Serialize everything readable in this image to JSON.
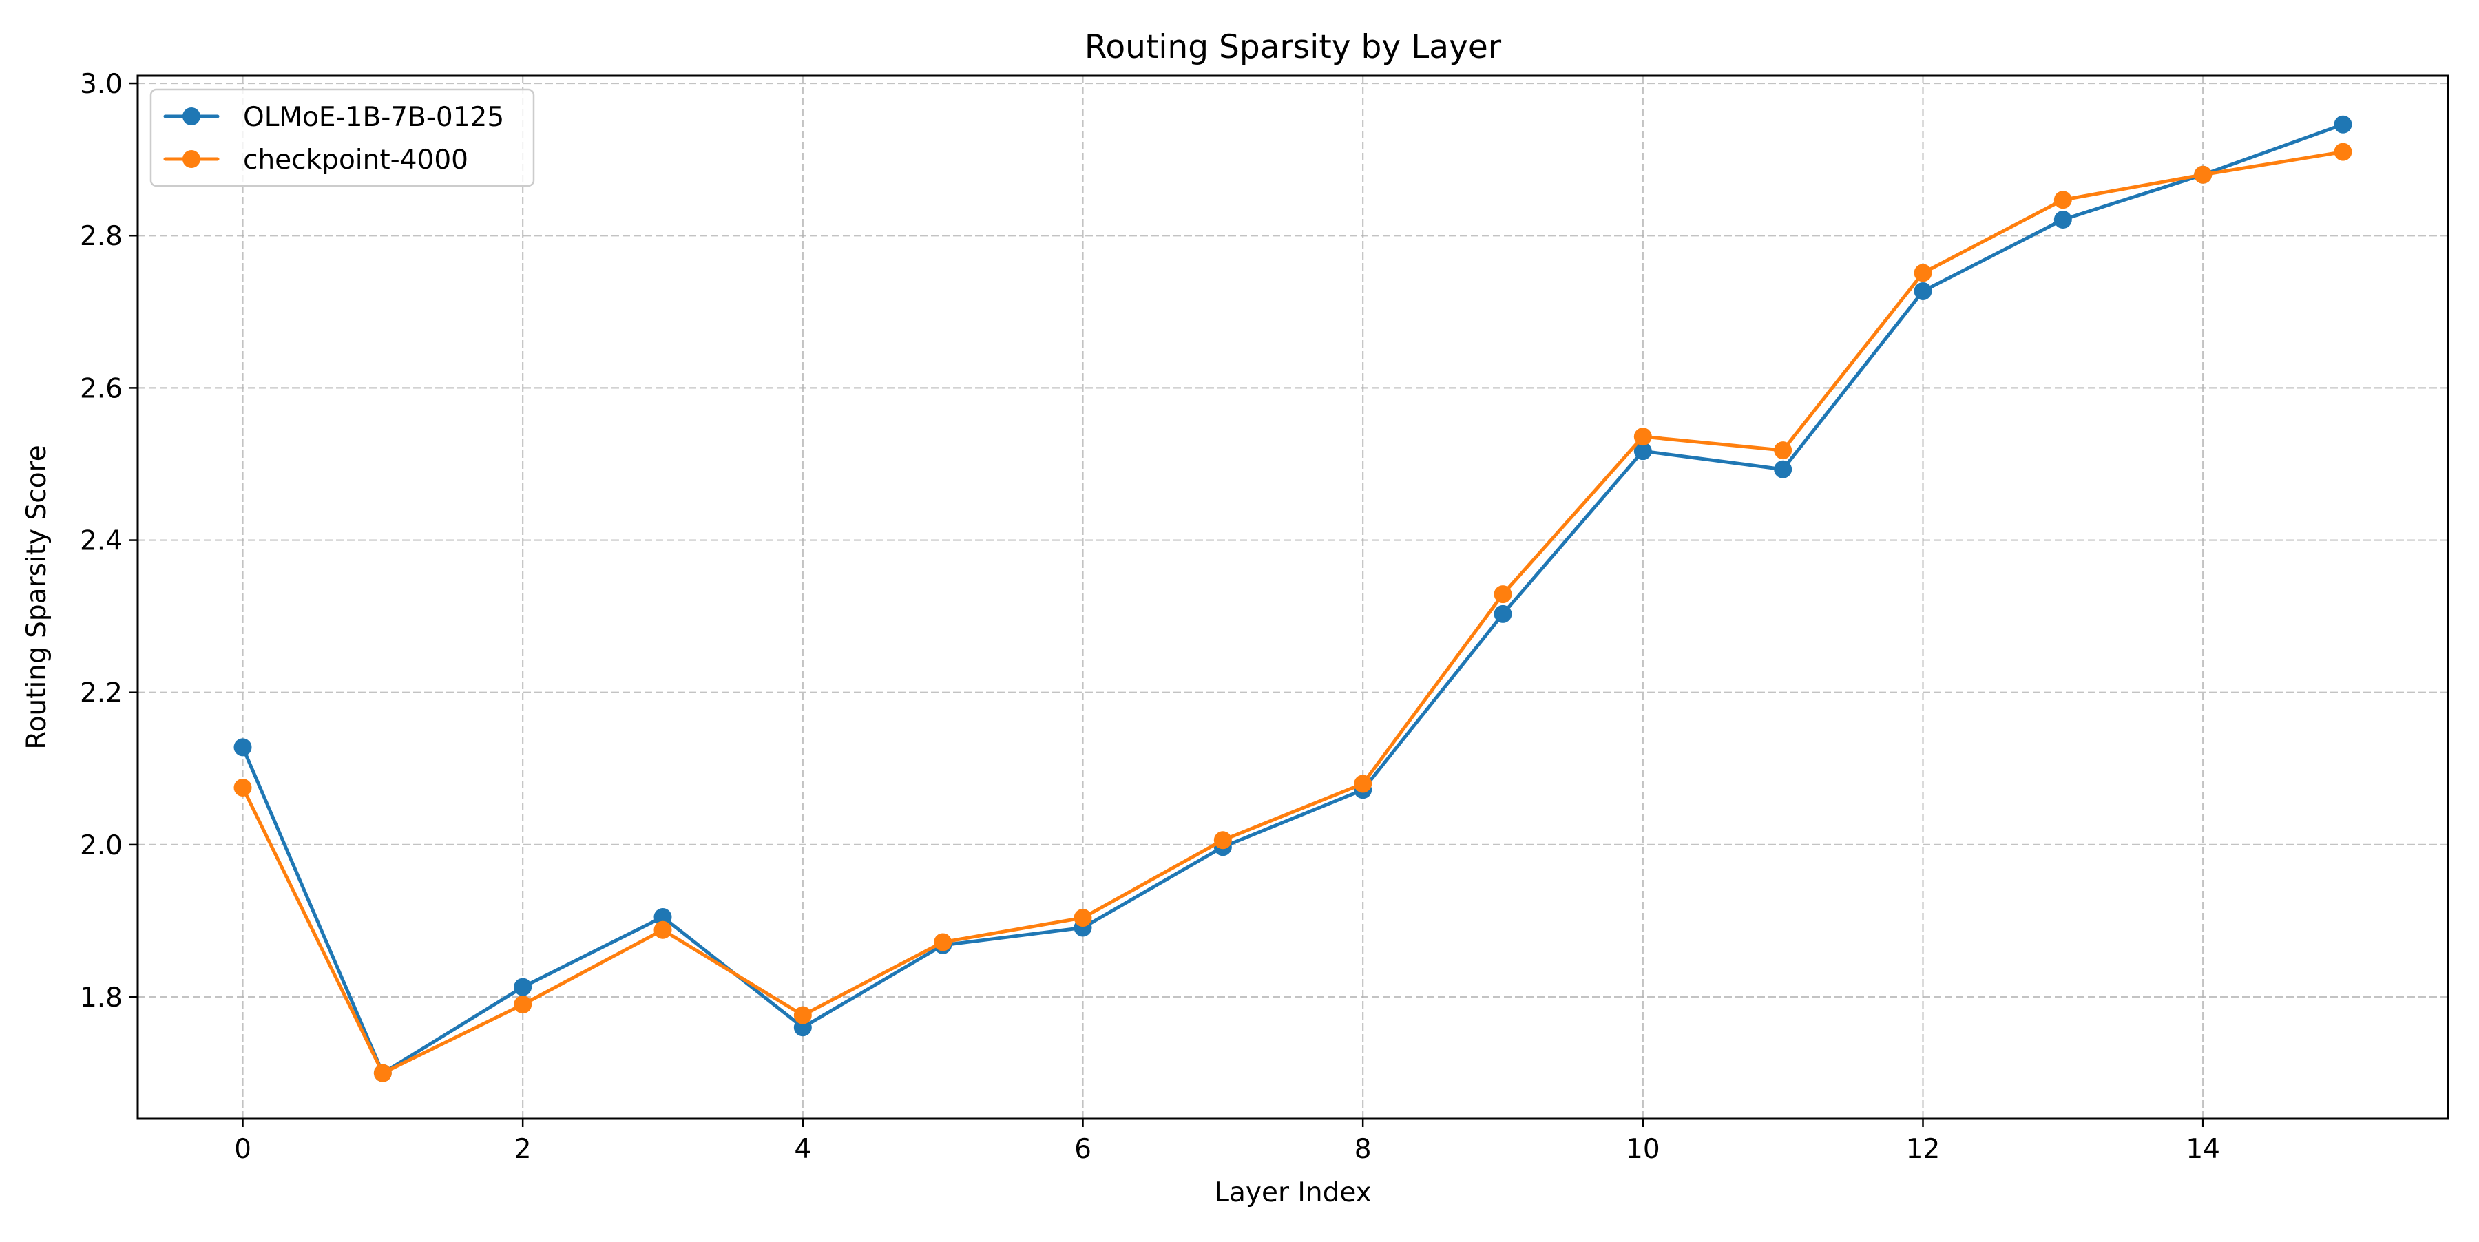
{
  "chart_data": {
    "type": "line",
    "title": "Routing Sparsity by Layer",
    "xlabel": "Layer Index",
    "ylabel": "Routing Sparsity Score",
    "x": [
      0,
      1,
      2,
      3,
      4,
      5,
      6,
      7,
      8,
      9,
      10,
      11,
      12,
      13,
      14,
      15
    ],
    "xlim": [
      -0.75,
      15.75
    ],
    "ylim": [
      1.64,
      3.01
    ],
    "xticks": [
      0,
      2,
      4,
      6,
      8,
      10,
      12,
      14
    ],
    "yticks": [
      1.8,
      2.0,
      2.2,
      2.4,
      2.6,
      2.8,
      3.0
    ],
    "xtick_labels": [
      "0",
      "2",
      "4",
      "6",
      "8",
      "10",
      "12",
      "14"
    ],
    "ytick_labels": [
      "1.8",
      "2.0",
      "2.2",
      "2.4",
      "2.6",
      "2.8",
      "3.0"
    ],
    "grid": true,
    "legend_position": "upper-left",
    "marker": "circle",
    "series": [
      {
        "name": "OLMoE-1B-7B-0125",
        "color": "#1f77b4",
        "values": [
          2.128,
          1.7,
          1.813,
          1.905,
          1.76,
          1.868,
          1.891,
          1.997,
          2.072,
          2.303,
          2.517,
          2.493,
          2.727,
          2.821,
          2.88,
          2.946
        ]
      },
      {
        "name": "checkpoint-4000",
        "color": "#ff7f0e",
        "values": [
          2.075,
          1.7,
          1.79,
          1.888,
          1.776,
          1.872,
          1.904,
          2.006,
          2.08,
          2.329,
          2.536,
          2.518,
          2.751,
          2.847,
          2.88,
          2.91
        ]
      }
    ]
  }
}
